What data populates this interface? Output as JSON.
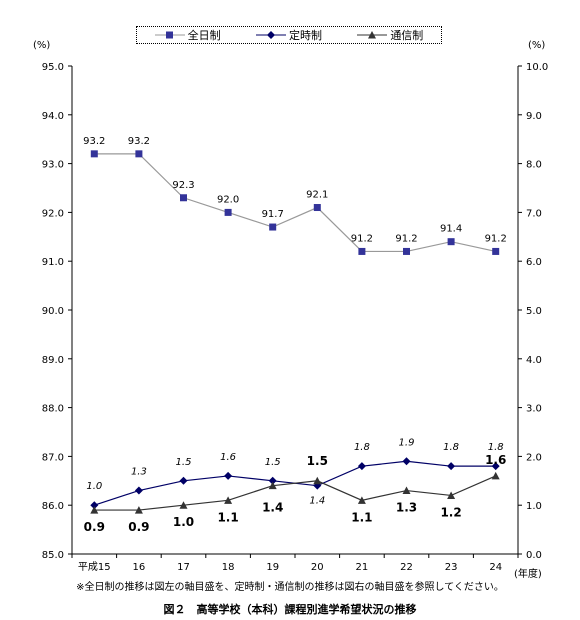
{
  "chart_data": {
    "type": "line",
    "categories": [
      "平成15",
      "16",
      "17",
      "18",
      "19",
      "20",
      "21",
      "22",
      "23",
      "24"
    ],
    "series": [
      {
        "name": "全日制",
        "axis": "left",
        "marker": "square",
        "color": "#333399",
        "line_color": "#999999",
        "values": [
          93.2,
          93.2,
          92.3,
          92.0,
          91.7,
          92.1,
          91.2,
          91.2,
          91.4,
          91.2
        ],
        "labels": [
          "93.2",
          "93.2",
          "92.3",
          "92.0",
          "91.7",
          "92.1",
          "91.2",
          "91.2",
          "91.4",
          "91.2"
        ]
      },
      {
        "name": "定時制",
        "axis": "right",
        "marker": "diamond",
        "color": "#000066",
        "line_color": "#000066",
        "values": [
          1.0,
          1.3,
          1.5,
          1.6,
          1.5,
          1.4,
          1.8,
          1.9,
          1.8,
          1.8
        ],
        "labels": [
          "1.0",
          "1.3",
          "1.5",
          "1.6",
          "1.5",
          "1.4",
          "1.8",
          "1.9",
          "1.8",
          "1.8"
        ]
      },
      {
        "name": "通信制",
        "axis": "right",
        "marker": "triangle",
        "color": "#333333",
        "line_color": "#333333",
        "values": [
          0.9,
          0.9,
          1.0,
          1.1,
          1.4,
          1.5,
          1.1,
          1.3,
          1.2,
          1.6
        ],
        "labels": [
          "0.9",
          "0.9",
          "1.0",
          "1.1",
          "1.4",
          "1.5",
          "1.1",
          "1.3",
          "1.2",
          "1.6"
        ]
      }
    ],
    "y_left": {
      "label": "(%)",
      "ylim": [
        85.0,
        95.0
      ],
      "ticks": [
        "85.0",
        "86.0",
        "87.0",
        "88.0",
        "89.0",
        "90.0",
        "91.0",
        "92.0",
        "93.0",
        "94.0",
        "95.0"
      ]
    },
    "y_right": {
      "label": "(%)",
      "ylim": [
        0.0,
        10.0
      ],
      "ticks": [
        "0.0",
        "1.0",
        "2.0",
        "3.0",
        "4.0",
        "5.0",
        "6.0",
        "7.0",
        "8.0",
        "9.0",
        "10.0"
      ]
    },
    "xlabel": "(年度)",
    "grid": false,
    "legend_position": "top"
  },
  "legend": {
    "items": [
      "全日制",
      "定時制",
      "通信制"
    ]
  },
  "note": "※全日制の推移は図左の軸目盛を、定時制・通信制の推移は図右の軸目盛を参照してください。",
  "caption": "図２　高等学校（本科）課程別進学希望状況の推移",
  "units": {
    "left": "(%)",
    "right": "(%)",
    "x": "(年度)"
  }
}
